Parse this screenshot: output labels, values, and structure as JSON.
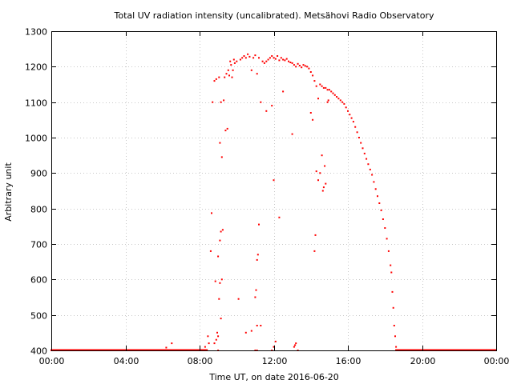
{
  "chart_data": {
    "type": "scatter",
    "title": "Total UV radiation intensity (uncalibrated). Metsähovi Radio Observatory",
    "xlabel": "Time UT, on date 2016-06-20",
    "ylabel": "Arbitrary unit",
    "xlim": [
      0,
      24
    ],
    "ylim": [
      400,
      1300
    ],
    "x_ticks": [
      0,
      4,
      8,
      12,
      16,
      20,
      24
    ],
    "x_tick_labels": [
      "00:00",
      "04:00",
      "08:00",
      "12:00",
      "16:00",
      "20:00",
      "00:00"
    ],
    "y_ticks": [
      400,
      500,
      600,
      700,
      800,
      900,
      1000,
      1100,
      1200,
      1300
    ],
    "grid": true,
    "legend": "none",
    "marker_color": "#ff0000",
    "series": [
      {
        "points": [
          [
            0.0,
            400
          ],
          [
            0.5,
            400
          ],
          [
            1.0,
            400
          ],
          [
            1.5,
            400
          ],
          [
            2.0,
            400
          ],
          [
            2.5,
            400
          ],
          [
            3.0,
            400
          ],
          [
            3.5,
            400
          ],
          [
            4.0,
            400
          ],
          [
            4.5,
            400
          ],
          [
            5.0,
            400
          ],
          [
            5.5,
            400
          ],
          [
            6.0,
            400
          ],
          [
            6.2,
            408
          ],
          [
            6.5,
            420
          ],
          [
            7.0,
            400
          ],
          [
            7.5,
            400
          ],
          [
            8.0,
            400
          ],
          [
            8.3,
            410
          ],
          [
            8.45,
            440
          ],
          [
            8.5,
            420
          ],
          [
            8.6,
            680
          ],
          [
            8.65,
            787
          ],
          [
            8.7,
            1100
          ],
          [
            8.8,
            1160
          ],
          [
            8.85,
            595
          ],
          [
            8.9,
            1165
          ],
          [
            8.95,
            450
          ],
          [
            9.0,
            440
          ],
          [
            9.05,
            1170
          ],
          [
            9.1,
            985
          ],
          [
            9.15,
            1100
          ],
          [
            9.2,
            945
          ],
          [
            9.3,
            1105
          ],
          [
            9.35,
            1170
          ],
          [
            9.4,
            1020
          ],
          [
            9.45,
            1180
          ],
          [
            9.5,
            1025
          ],
          [
            9.55,
            1190
          ],
          [
            9.6,
            1175
          ],
          [
            9.65,
            1215
          ],
          [
            9.7,
            1205
          ],
          [
            9.75,
            1170
          ],
          [
            9.8,
            1190
          ],
          [
            9.85,
            1220
          ],
          [
            9.9,
            1210
          ],
          [
            10.0,
            1215
          ],
          [
            10.1,
            545
          ],
          [
            10.2,
            1220
          ],
          [
            10.3,
            1225
          ],
          [
            10.4,
            1230
          ],
          [
            10.5,
            1225
          ],
          [
            10.6,
            1235
          ],
          [
            10.7,
            1228
          ],
          [
            10.8,
            1190
          ],
          [
            10.9,
            1225
          ],
          [
            11.0,
            1232
          ],
          [
            11.1,
            1180
          ],
          [
            11.2,
            1225
          ],
          [
            11.3,
            1100
          ],
          [
            11.4,
            1215
          ],
          [
            11.5,
            1210
          ],
          [
            11.6,
            1215
          ],
          [
            11.7,
            1220
          ],
          [
            11.8,
            1225
          ],
          [
            11.9,
            1230
          ],
          [
            12.0,
            1225
          ],
          [
            12.1,
            1222
          ],
          [
            12.2,
            1230
          ],
          [
            12.3,
            1218
          ],
          [
            12.4,
            1225
          ],
          [
            12.5,
            1220
          ],
          [
            12.6,
            1218
          ],
          [
            12.7,
            1222
          ],
          [
            12.8,
            1215
          ],
          [
            12.9,
            1212
          ],
          [
            13.0,
            1210
          ],
          [
            13.1,
            1205
          ],
          [
            13.2,
            1200
          ],
          [
            13.3,
            1208
          ],
          [
            13.4,
            1203
          ],
          [
            13.5,
            1198
          ],
          [
            13.6,
            1205
          ],
          [
            13.7,
            1202
          ],
          [
            13.8,
            1200
          ],
          [
            13.9,
            1195
          ],
          [
            14.0,
            1185
          ],
          [
            14.1,
            1175
          ],
          [
            14.2,
            1160
          ],
          [
            14.3,
            1145
          ],
          [
            14.4,
            1110
          ],
          [
            14.5,
            1150
          ],
          [
            14.6,
            1145
          ],
          [
            14.7,
            1140
          ],
          [
            14.8,
            1140
          ],
          [
            14.9,
            1135
          ],
          [
            15.0,
            1135
          ],
          [
            15.1,
            1130
          ],
          [
            15.2,
            1125
          ],
          [
            15.3,
            1120
          ],
          [
            15.4,
            1115
          ],
          [
            15.5,
            1110
          ],
          [
            15.6,
            1105
          ],
          [
            15.7,
            1100
          ],
          [
            15.8,
            1095
          ],
          [
            15.9,
            1085
          ],
          [
            16.0,
            1075
          ],
          [
            16.1,
            1065
          ],
          [
            16.2,
            1055
          ],
          [
            16.3,
            1045
          ],
          [
            16.4,
            1030
          ],
          [
            16.5,
            1015
          ],
          [
            16.6,
            1000
          ],
          [
            16.7,
            985
          ],
          [
            16.8,
            970
          ],
          [
            16.9,
            955
          ],
          [
            17.0,
            940
          ],
          [
            17.1,
            925
          ],
          [
            17.2,
            910
          ],
          [
            17.3,
            895
          ],
          [
            17.4,
            875
          ],
          [
            17.5,
            855
          ],
          [
            17.6,
            835
          ],
          [
            17.7,
            815
          ],
          [
            17.8,
            795
          ],
          [
            17.9,
            770
          ],
          [
            18.0,
            745
          ],
          [
            18.1,
            715
          ],
          [
            18.2,
            680
          ],
          [
            18.3,
            640
          ],
          [
            18.35,
            620
          ],
          [
            18.4,
            565
          ],
          [
            18.45,
            520
          ],
          [
            18.5,
            470
          ],
          [
            18.55,
            440
          ],
          [
            18.6,
            410
          ],
          [
            18.7,
            400
          ],
          [
            19.0,
            400
          ],
          [
            19.5,
            400
          ],
          [
            20.0,
            400
          ],
          [
            20.5,
            400
          ],
          [
            21.0,
            400
          ],
          [
            21.5,
            400
          ],
          [
            22.0,
            400
          ],
          [
            22.5,
            400
          ],
          [
            23.0,
            400
          ],
          [
            23.5,
            400
          ],
          [
            24.0,
            400
          ],
          [
            9.1,
            710
          ],
          [
            9.15,
            735
          ],
          [
            9.25,
            740
          ],
          [
            9.0,
            665
          ],
          [
            9.05,
            545
          ],
          [
            9.1,
            590
          ],
          [
            9.15,
            490
          ],
          [
            9.2,
            600
          ],
          [
            9.0,
            400
          ],
          [
            8.9,
            430
          ],
          [
            8.8,
            420
          ],
          [
            10.5,
            450
          ],
          [
            10.8,
            455
          ],
          [
            11.0,
            550
          ],
          [
            11.05,
            570
          ],
          [
            11.1,
            655
          ],
          [
            11.15,
            670
          ],
          [
            11.2,
            755
          ],
          [
            11.1,
            470
          ],
          [
            11.3,
            470
          ],
          [
            11.0,
            400
          ],
          [
            11.1,
            400
          ],
          [
            11.6,
            1075
          ],
          [
            11.9,
            1090
          ],
          [
            12.0,
            880
          ],
          [
            12.3,
            775
          ],
          [
            12.5,
            1130
          ],
          [
            12.0,
            410
          ],
          [
            12.1,
            425
          ],
          [
            11.9,
            400
          ],
          [
            13.0,
            1010
          ],
          [
            13.1,
            410
          ],
          [
            13.15,
            415
          ],
          [
            13.2,
            420
          ],
          [
            13.3,
            400
          ],
          [
            14.0,
            1070
          ],
          [
            14.1,
            1050
          ],
          [
            14.2,
            680
          ],
          [
            14.25,
            725
          ],
          [
            14.3,
            905
          ],
          [
            14.4,
            880
          ],
          [
            14.5,
            900
          ],
          [
            14.6,
            950
          ],
          [
            14.65,
            850
          ],
          [
            14.7,
            860
          ],
          [
            14.75,
            920
          ],
          [
            14.8,
            870
          ],
          [
            14.9,
            1100
          ],
          [
            14.95,
            1105
          ]
        ]
      }
    ]
  }
}
